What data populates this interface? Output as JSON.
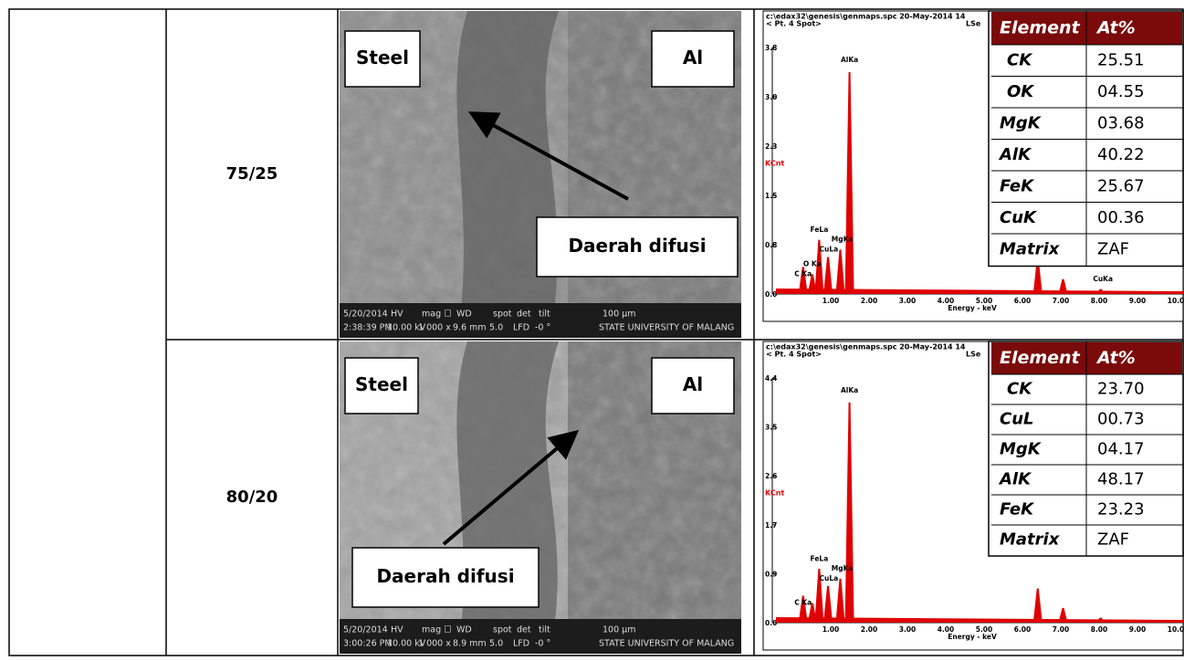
{
  "rows": [
    {
      "ratio": "75/25",
      "sem": {
        "labels": [
          "Steel",
          "Al",
          "Daerah difusi"
        ],
        "footer_top": [
          "5/20/2014",
          "HV",
          "mag ☐",
          "WD",
          "spot",
          "det",
          "tilt",
          "100 µm"
        ],
        "footer_bottom": [
          "2:38:39 PM",
          "10.00 kV",
          "1 000 x",
          "9.6 mm",
          "5.0",
          "LFD",
          "-0 °",
          "STATE UNIVERSITY OF MALANG"
        ]
      },
      "edx": {
        "header": [
          "c:\\edax32\\genesis\\genmaps.spc  20-May-2014 14",
          "< Pt. 4 Spot>",
          "LSe"
        ],
        "yticks": [
          "3.8",
          "3.0",
          "2.3",
          "1.5",
          "0.8",
          "0.0"
        ],
        "ylabel": "KCnt",
        "xticks": [
          "1.00",
          "2.00",
          "3.00",
          "4.00",
          "5.00",
          "6.00",
          "7.00",
          "8.00",
          "9.00",
          "10.0"
        ],
        "xlabel": "Energy - keV",
        "peak_labels": [
          "AlKa",
          "FeLa",
          "MgKa",
          "CuLa",
          "O Ka",
          "C Ka",
          "CuKa"
        ]
      },
      "table": {
        "header": [
          "Element",
          "At%"
        ],
        "rows": [
          [
            "CK",
            "25.51"
          ],
          [
            "OK",
            "04.55"
          ],
          [
            "MgK",
            "03.68"
          ],
          [
            "AlK",
            "40.22"
          ],
          [
            "FeK",
            "25.67"
          ],
          [
            "CuK",
            "00.36"
          ],
          [
            "Matrix",
            "ZAF"
          ]
        ]
      }
    },
    {
      "ratio": "80/20",
      "sem": {
        "labels": [
          "Steel",
          "Al",
          "Daerah difusi"
        ],
        "footer_top": [
          "5/20/2014",
          "HV",
          "mag ☐",
          "WD",
          "spot",
          "det",
          "tilt",
          "100 µm"
        ],
        "footer_bottom": [
          "3:00:26 PM",
          "10.00 kV",
          "1 000 x",
          "8.9 mm",
          "5.0",
          "LFD",
          "-0 °",
          "STATE UNIVERSITY OF MALANG"
        ]
      },
      "edx": {
        "header": [
          "c:\\edax32\\genesis\\genmaps.spc  20-May-2014 14",
          "< Pt. 4 Spot>",
          "LSe"
        ],
        "yticks": [
          "4.4",
          "3.5",
          "2.6",
          "1.7",
          "0.9",
          "0.0"
        ],
        "ylabel": "KCnt",
        "xticks": [
          "1.00",
          "2.00",
          "3.00",
          "4.00",
          "5.00",
          "6.00",
          "7.00",
          "8.00",
          "9.00",
          "10.0"
        ],
        "xlabel": "Energy - keV",
        "peak_labels": [
          "AlKa",
          "FeLa",
          "MgKa",
          "CuLa",
          "C Ka"
        ]
      },
      "table": {
        "header": [
          "Element",
          "At%"
        ],
        "rows": [
          [
            "CK",
            "23.70"
          ],
          [
            "CuL",
            "00.73"
          ],
          [
            "MgK",
            "04.17"
          ],
          [
            "AlK",
            "48.17"
          ],
          [
            "FeK",
            "23.23"
          ],
          [
            "Matrix",
            "ZAF"
          ]
        ]
      }
    }
  ]
}
